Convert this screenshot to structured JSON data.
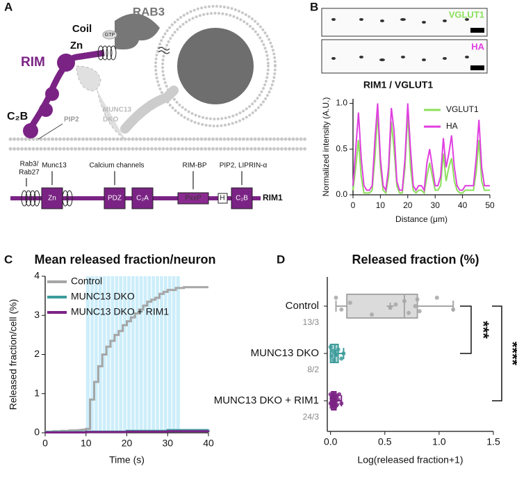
{
  "panels": [
    "A",
    "B",
    "C",
    "D"
  ],
  "diagram": {
    "rab3": "RAB3",
    "coil": "Coil",
    "gtp": "GTP",
    "zn": "Zn",
    "rim": "RIM",
    "c2b": "C₂B",
    "pip2": "PIP2",
    "munc13": "MUNC13",
    "dko": "DKO",
    "rab": "Rab3/",
    "rab27": "Rab27",
    "munc13_site": "Munc13",
    "calcium": "Calcium channels",
    "rimbp": "RIM-BP",
    "pip2_liprin": "PIP2, LIPRIN-α",
    "domains": [
      "Zn",
      "PDZ",
      "C₂A",
      "PxxP",
      "H",
      "C₂B"
    ],
    "protein": "RIM1"
  },
  "images": {
    "top": "VGLUT1",
    "bottom": "HA"
  },
  "chart_data": [
    {
      "type": "line",
      "title": "RIM1 / VGLUT1",
      "x_label": "Distance (μm)",
      "y_label": "Normalized intensity (A.U.)",
      "x": [
        0,
        1,
        2,
        3,
        4,
        5,
        6,
        7,
        8,
        9,
        10,
        11,
        12,
        13,
        14,
        15,
        16,
        17,
        18,
        19,
        20,
        21,
        22,
        23,
        24,
        25,
        26,
        27,
        28,
        29,
        30,
        31,
        32,
        33,
        34,
        35,
        36,
        37,
        38,
        39,
        40,
        41,
        42,
        43,
        44,
        45,
        46,
        47,
        48,
        49,
        50
      ],
      "series": [
        {
          "name": "VGLUT1",
          "color": "#8be05a",
          "values": [
            0.05,
            0.3,
            0.6,
            0.2,
            0.02,
            0.02,
            0.02,
            0.05,
            0.4,
            0.9,
            0.3,
            0.05,
            0.02,
            0.2,
            0.8,
            0.5,
            0.1,
            0.02,
            0.02,
            0.3,
            0.9,
            0.3,
            0.05,
            0.02,
            0.05,
            0.05,
            0.02,
            0.2,
            0.35,
            0.2,
            0.05,
            0.05,
            0.1,
            0.45,
            0.15,
            0.3,
            0.4,
            0.15,
            0.05,
            0.02,
            0.02,
            0.05,
            0.05,
            0.05,
            0.05,
            0.25,
            0.6,
            0.15,
            0.05,
            0.05,
            0.05
          ]
        },
        {
          "name": "HA",
          "color": "#e03fe0",
          "values": [
            0.1,
            0.5,
            0.9,
            0.4,
            0.1,
            0.05,
            0.05,
            0.1,
            0.6,
            1.0,
            0.4,
            0.1,
            0.05,
            0.3,
            0.95,
            0.7,
            0.15,
            0.05,
            0.05,
            0.4,
            1.0,
            0.5,
            0.1,
            0.05,
            0.1,
            0.1,
            0.05,
            0.35,
            0.5,
            0.3,
            0.1,
            0.1,
            0.2,
            0.62,
            0.3,
            0.45,
            0.65,
            0.3,
            0.1,
            0.05,
            0.05,
            0.1,
            0.1,
            0.1,
            0.1,
            0.4,
            0.82,
            0.3,
            0.1,
            0.1,
            0.1
          ]
        }
      ],
      "xlim": [
        0,
        50
      ],
      "xticks": [
        0,
        10,
        20,
        30,
        40,
        50
      ],
      "ylim": [
        0,
        1.05
      ],
      "yticks": [
        {
          "value": 0,
          "label": "0.0"
        },
        0.5,
        {
          "value": 1,
          "label": "1.0"
        }
      ]
    },
    {
      "type": "step",
      "title": "Mean released fraction/neuron",
      "x_label": "Time (s)",
      "y_label": "Released fraction/cell (%)",
      "shaded": [
        10,
        33
      ],
      "series": [
        {
          "name": "Control",
          "color": "#a6a6a6",
          "x": [
            0,
            1,
            2,
            3,
            4,
            5,
            6,
            7,
            8,
            9,
            10,
            11,
            12,
            13,
            14,
            15,
            16,
            17,
            18,
            19,
            20,
            21,
            22,
            23,
            24,
            25,
            26,
            27,
            28,
            29,
            30,
            31,
            32,
            33,
            34,
            35,
            36,
            37,
            38,
            39,
            40
          ],
          "values": [
            0.03,
            0.03,
            0.04,
            0.04,
            0.05,
            0.05,
            0.06,
            0.06,
            0.07,
            0.08,
            0.1,
            0.85,
            1.3,
            1.7,
            2.0,
            2.2,
            2.35,
            2.5,
            2.6,
            2.75,
            2.85,
            2.95,
            3.05,
            3.15,
            3.25,
            3.35,
            3.4,
            3.45,
            3.55,
            3.6,
            3.65,
            3.65,
            3.7,
            3.7,
            3.72,
            3.72,
            3.72,
            3.72,
            3.72,
            3.72,
            3.72
          ]
        },
        {
          "name": "MUNC13 DKO",
          "color": "#3e9c9c",
          "x": [
            0,
            10,
            20,
            30,
            40
          ],
          "values": [
            0.02,
            0.03,
            0.05,
            0.07,
            0.08
          ]
        },
        {
          "name": "MUNC13 DKO + RIM1",
          "color": "#7b2385",
          "x": [
            0,
            10,
            20,
            30,
            40
          ],
          "values": [
            0.01,
            0.02,
            0.03,
            0.04,
            0.05
          ]
        }
      ],
      "xlim": [
        0,
        40
      ],
      "xticks": [
        0,
        10,
        20,
        30,
        40
      ],
      "ylim": [
        0,
        4
      ],
      "yticks": [
        0,
        1,
        2,
        3,
        4
      ]
    },
    {
      "type": "box",
      "title": "Released fraction (%)",
      "x_label": "Log(released fraction+1)",
      "categories": [
        "Control",
        "MUNC13 DKO",
        "MUNC13 DKO + RIM1"
      ],
      "boxes": [
        {
          "color": "#a6a6a6",
          "n_label": "13/3",
          "min": 0.05,
          "q1": 0.15,
          "median": 0.68,
          "q3": 0.8,
          "max": 1.13,
          "mean": 0.55,
          "points": [
            0.05,
            0.1,
            0.18,
            0.38,
            0.55,
            0.68,
            0.72,
            0.78,
            0.8,
            0.82,
            0.6,
            0.98,
            1.13
          ]
        },
        {
          "color": "#3e9c9c",
          "n_label": "8/2",
          "min": 0,
          "q1": 0,
          "median": 0.04,
          "q3": 0.07,
          "max": 0.12,
          "mean": 0.05,
          "points": [
            0,
            0.01,
            0.02,
            0.03,
            0.05,
            0.07,
            0.1,
            0.12
          ]
        },
        {
          "color": "#7b2385",
          "n_label": "24/3",
          "min": 0,
          "q1": 0.01,
          "median": 0.03,
          "q3": 0.05,
          "max": 0.1,
          "mean": 0.035,
          "points": [
            0,
            0,
            0.01,
            0.01,
            0.01,
            0.02,
            0.02,
            0.02,
            0.02,
            0.03,
            0.03,
            0.03,
            0.03,
            0.04,
            0.04,
            0.04,
            0.05,
            0.05,
            0.05,
            0.06,
            0.06,
            0.07,
            0.08,
            0.1
          ]
        }
      ],
      "significance": [
        "***",
        "****"
      ],
      "xlim": [
        -0.03,
        1.5
      ],
      "xticks": [
        {
          "value": 0,
          "label": "0.0"
        },
        0.5,
        {
          "value": 1,
          "label": "1.0"
        },
        1.5
      ]
    }
  ]
}
